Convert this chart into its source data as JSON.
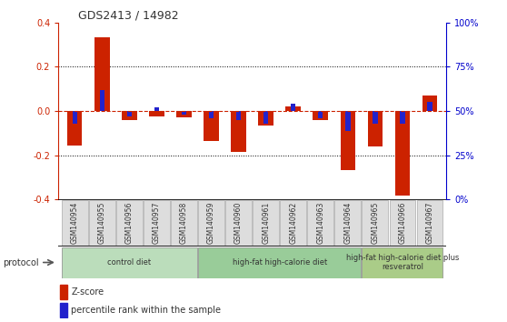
{
  "title": "GDS2413 / 14982",
  "samples": [
    "GSM140954",
    "GSM140955",
    "GSM140956",
    "GSM140957",
    "GSM140958",
    "GSM140959",
    "GSM140960",
    "GSM140961",
    "GSM140962",
    "GSM140963",
    "GSM140964",
    "GSM140965",
    "GSM140966",
    "GSM140967"
  ],
  "zscore": [
    -0.155,
    0.335,
    -0.04,
    -0.025,
    -0.03,
    -0.135,
    -0.185,
    -0.065,
    0.02,
    -0.04,
    -0.265,
    -0.16,
    -0.38,
    0.07
  ],
  "pct_rank_raw": [
    43,
    62,
    47,
    52,
    48,
    46,
    45,
    43,
    54,
    46,
    39,
    43,
    43,
    55
  ],
  "ylim": [
    -0.4,
    0.4
  ],
  "yticks_left": [
    -0.4,
    -0.2,
    0.0,
    0.2,
    0.4
  ],
  "yticks_right": [
    0,
    25,
    50,
    75,
    100
  ],
  "bar_color_red": "#cc2200",
  "bar_color_blue": "#2222cc",
  "zero_line_color": "#cc2200",
  "grid_color": "#000000",
  "title_color": "#333333",
  "left_tick_color": "#cc2200",
  "right_tick_color": "#0000cc",
  "protocol_groups": [
    {
      "label": "control diet",
      "start": 0,
      "end": 4,
      "color": "#bbddbb"
    },
    {
      "label": "high-fat high-calorie diet",
      "start": 5,
      "end": 10,
      "color": "#99cc99"
    },
    {
      "label": "high-fat high-calorie diet plus\nresveratrol",
      "start": 11,
      "end": 13,
      "color": "#aacc88"
    }
  ],
  "protocol_label": "protocol",
  "legend_zscore": "Z-score",
  "legend_pct": "percentile rank within the sample",
  "red_bar_width": 0.55,
  "blue_bar_width": 0.18
}
